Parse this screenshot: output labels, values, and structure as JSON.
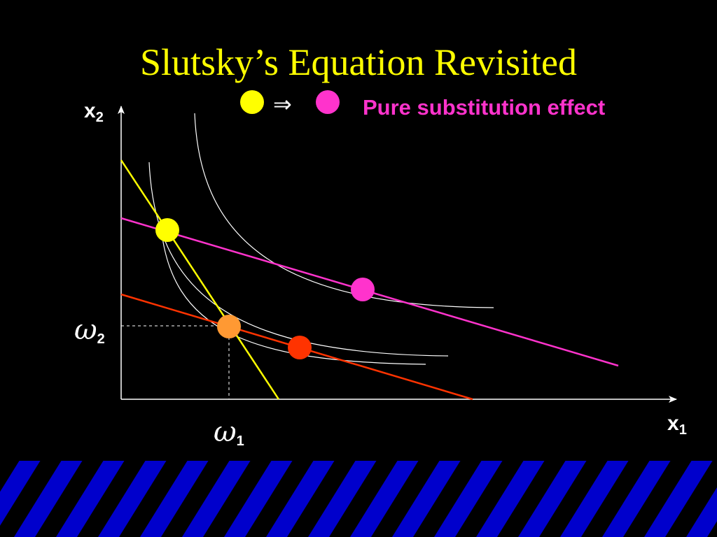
{
  "title": "Slutsky’s Equation Revisited",
  "legend": {
    "implies_symbol": "⇒",
    "label": "Pure substitution effect",
    "from_color": "#ffff00",
    "to_color": "#ff33cc"
  },
  "axes": {
    "x_label": "x",
    "x_sub": "1",
    "y_label": "x",
    "y_sub": "2"
  },
  "endowment": {
    "omega_symbol": "ω",
    "x_sub": "1",
    "y_sub": "2"
  },
  "colors": {
    "background": "#000000",
    "title": "#ffff00",
    "axis": "#ffffff",
    "indifference_curve": "#ffffff",
    "original_budget": "#ffff00",
    "pivoted_budget": "#ff33cc",
    "new_budget": "#ff3300",
    "original_choice": "#ffff00",
    "substitution_choice": "#ff33cc",
    "endowment_point": "#ff9933",
    "final_choice": "#ff3300",
    "footer_stripe_base": "#0000cc",
    "footer_stripe_light": "#3333ff"
  },
  "diagram_elements": {
    "budget_lines": [
      "original-budget-line",
      "pivoted-budget-line",
      "new-budget-line"
    ],
    "indifference_curves": 3,
    "points": [
      "original-choice",
      "substitution-choice",
      "endowment",
      "final-choice"
    ]
  }
}
